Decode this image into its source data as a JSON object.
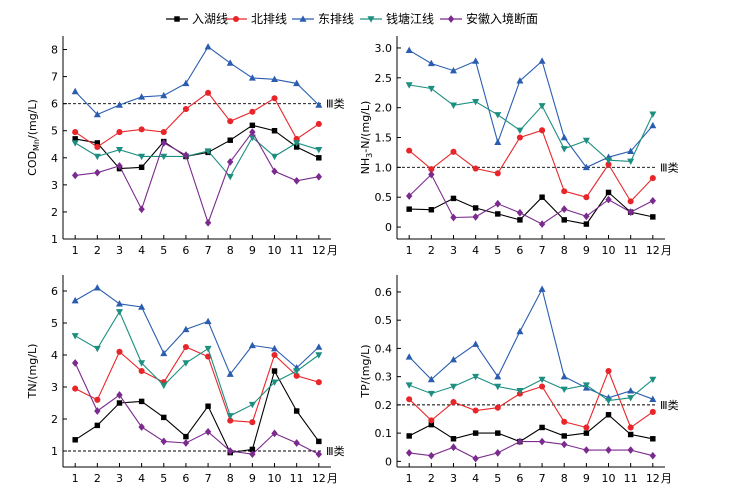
{
  "legend": [
    {
      "name": "入湖线",
      "color": "#000000",
      "marker": "square"
    },
    {
      "name": "北排线",
      "color": "#e8262a",
      "marker": "circle"
    },
    {
      "name": "东排线",
      "color": "#2a5db0",
      "marker": "triangle-up"
    },
    {
      "name": "钱塘江线",
      "color": "#1d8f80",
      "marker": "triangle-down"
    },
    {
      "name": "安徽入境断面",
      "color": "#7b2a8e",
      "marker": "diamond"
    }
  ],
  "chart_data": [
    {
      "type": "line",
      "ylabel_parts": [
        "COD",
        "Mn",
        "/(mg/L)"
      ],
      "ylim": [
        1,
        8.5
      ],
      "yticks": [
        "1",
        "2",
        "3",
        "4",
        "5",
        "6",
        "7",
        "8"
      ],
      "categories": [
        "1",
        "2",
        "3",
        "4",
        "5",
        "6",
        "7",
        "8",
        "9",
        "10",
        "11",
        "12"
      ],
      "x_unit": "月",
      "threshold": {
        "value": 6,
        "label": "Ⅲ类"
      },
      "series": [
        {
          "name": "入湖线",
          "values": [
            4.7,
            4.55,
            3.6,
            3.65,
            4.6,
            4.05,
            4.2,
            4.65,
            5.2,
            5.0,
            4.4,
            4.0
          ]
        },
        {
          "name": "北排线",
          "values": [
            4.95,
            4.4,
            4.95,
            5.05,
            4.95,
            5.8,
            6.4,
            5.35,
            5.7,
            6.2,
            4.7,
            5.25
          ]
        },
        {
          "name": "东排线",
          "values": [
            6.45,
            5.6,
            5.95,
            6.25,
            6.3,
            6.75,
            8.1,
            7.5,
            6.95,
            6.9,
            6.75,
            5.95
          ]
        },
        {
          "name": "钱塘江线",
          "values": [
            4.55,
            4.05,
            4.3,
            4.05,
            4.05,
            4.05,
            4.25,
            3.3,
            4.75,
            4.05,
            4.55,
            4.3
          ]
        },
        {
          "name": "安徽入境断面",
          "values": [
            3.35,
            3.45,
            3.7,
            2.1,
            4.55,
            4.1,
            1.6,
            3.85,
            4.95,
            3.5,
            3.15,
            3.3
          ]
        }
      ]
    },
    {
      "type": "line",
      "ylabel_parts": [
        "NH",
        "3",
        "-N/(mg/L)"
      ],
      "ylim": [
        -0.2,
        3.2
      ],
      "yticks": [
        "0",
        "0.5",
        "1.0",
        "1.5",
        "2.0",
        "2.5",
        "3.0"
      ],
      "categories": [
        "1",
        "2",
        "3",
        "4",
        "5",
        "6",
        "7",
        "8",
        "9",
        "10",
        "11",
        "12"
      ],
      "x_unit": "月",
      "threshold": {
        "value": 1.0,
        "label": "Ⅲ类"
      },
      "series": [
        {
          "name": "入湖线",
          "values": [
            0.3,
            0.29,
            0.48,
            0.32,
            0.22,
            0.12,
            0.5,
            0.12,
            0.05,
            0.58,
            0.25,
            0.17
          ]
        },
        {
          "name": "北排线",
          "values": [
            1.28,
            0.97,
            1.26,
            0.98,
            0.9,
            1.5,
            1.62,
            0.6,
            0.5,
            1.05,
            0.43,
            0.82
          ]
        },
        {
          "name": "东排线",
          "values": [
            2.96,
            2.74,
            2.62,
            2.78,
            1.42,
            2.45,
            2.78,
            1.5,
            1.0,
            1.17,
            1.27,
            1.7
          ]
        },
        {
          "name": "钱塘江线",
          "values": [
            2.38,
            2.32,
            2.04,
            2.1,
            1.88,
            1.62,
            2.03,
            1.31,
            1.45,
            1.12,
            1.1,
            1.89
          ]
        },
        {
          "name": "安徽入境断面",
          "values": [
            0.52,
            0.88,
            0.16,
            0.17,
            0.39,
            0.24,
            0.05,
            0.3,
            0.18,
            0.46,
            0.25,
            0.44
          ]
        }
      ]
    },
    {
      "type": "line",
      "ylabel_parts": [
        "TN/(mg/L)"
      ],
      "ylim": [
        0.5,
        6.5
      ],
      "yticks": [
        "1",
        "2",
        "3",
        "4",
        "5",
        "6"
      ],
      "categories": [
        "1",
        "2",
        "3",
        "4",
        "5",
        "6",
        "7",
        "8",
        "9",
        "10",
        "11",
        "12"
      ],
      "x_unit": "月",
      "threshold": {
        "value": 1.0,
        "label": "Ⅲ类"
      },
      "series": [
        {
          "name": "入湖线",
          "values": [
            1.35,
            1.8,
            2.5,
            2.55,
            2.05,
            1.45,
            2.4,
            0.95,
            1.05,
            3.5,
            2.25,
            1.3
          ]
        },
        {
          "name": "北排线",
          "values": [
            2.95,
            2.6,
            4.1,
            3.5,
            3.15,
            4.25,
            3.95,
            1.95,
            1.9,
            4.0,
            3.35,
            3.15
          ]
        },
        {
          "name": "东排线",
          "values": [
            5.7,
            6.1,
            5.6,
            5.5,
            4.05,
            4.8,
            5.05,
            3.4,
            4.3,
            4.2,
            3.6,
            4.25
          ]
        },
        {
          "name": "钱塘江线",
          "values": [
            4.6,
            4.2,
            5.35,
            3.75,
            3.05,
            3.75,
            4.2,
            2.1,
            2.45,
            3.15,
            3.5,
            4.0
          ]
        },
        {
          "name": "安徽入境断面",
          "values": [
            3.75,
            2.25,
            2.75,
            1.75,
            1.3,
            1.25,
            1.6,
            1.0,
            0.9,
            1.55,
            1.25,
            0.9
          ]
        }
      ]
    },
    {
      "type": "line",
      "ylabel_parts": [
        "TP/(mg/L)"
      ],
      "ylim": [
        -0.02,
        0.66
      ],
      "yticks": [
        "0",
        "0.1",
        "0.2",
        "0.3",
        "0.4",
        "0.5",
        "0.6"
      ],
      "categories": [
        "1",
        "2",
        "3",
        "4",
        "5",
        "6",
        "7",
        "8",
        "9",
        "10",
        "11",
        "12"
      ],
      "x_unit": "月",
      "threshold": {
        "value": 0.2,
        "label": "Ⅲ类"
      },
      "series": [
        {
          "name": "入湖线",
          "values": [
            0.09,
            0.13,
            0.08,
            0.1,
            0.1,
            0.07,
            0.12,
            0.09,
            0.1,
            0.165,
            0.095,
            0.08
          ]
        },
        {
          "name": "北排线",
          "values": [
            0.22,
            0.145,
            0.21,
            0.18,
            0.19,
            0.24,
            0.265,
            0.14,
            0.12,
            0.32,
            0.12,
            0.175
          ]
        },
        {
          "name": "东排线",
          "values": [
            0.37,
            0.29,
            0.36,
            0.415,
            0.3,
            0.46,
            0.61,
            0.3,
            0.26,
            0.225,
            0.25,
            0.22
          ]
        },
        {
          "name": "钱塘江线",
          "values": [
            0.27,
            0.24,
            0.265,
            0.3,
            0.265,
            0.25,
            0.29,
            0.255,
            0.27,
            0.215,
            0.225,
            0.29
          ]
        },
        {
          "name": "安徽入境断面",
          "values": [
            0.03,
            0.02,
            0.05,
            0.01,
            0.03,
            0.07,
            0.07,
            0.06,
            0.04,
            0.04,
            0.04,
            0.02
          ]
        }
      ]
    }
  ]
}
